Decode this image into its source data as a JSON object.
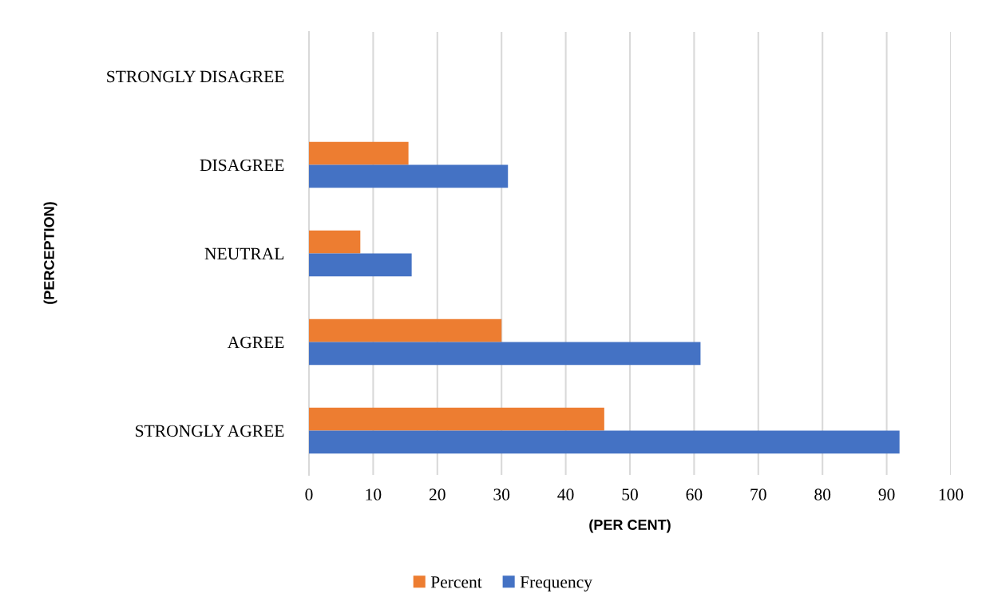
{
  "chart_data": {
    "type": "bar",
    "orientation": "horizontal",
    "xlabel": "(PER CENT)",
    "ylabel": "(PERCEPTION)",
    "categories": [
      "STRONGLY DISAGREE",
      "DISAGREE",
      "NEUTRAL",
      "AGREE",
      "STRONGLY AGREE"
    ],
    "series": [
      {
        "name": "Percent",
        "color": "#ed7d31",
        "values": [
          0,
          15.5,
          8,
          30,
          46
        ]
      },
      {
        "name": "Frequency",
        "color": "#4472c4",
        "values": [
          0,
          31,
          16,
          61,
          92
        ]
      }
    ],
    "xlim": [
      0,
      100
    ],
    "xticks": [
      0,
      10,
      20,
      30,
      40,
      50,
      60,
      70,
      80,
      90,
      100
    ],
    "grid": "x",
    "legend": "bottom"
  }
}
